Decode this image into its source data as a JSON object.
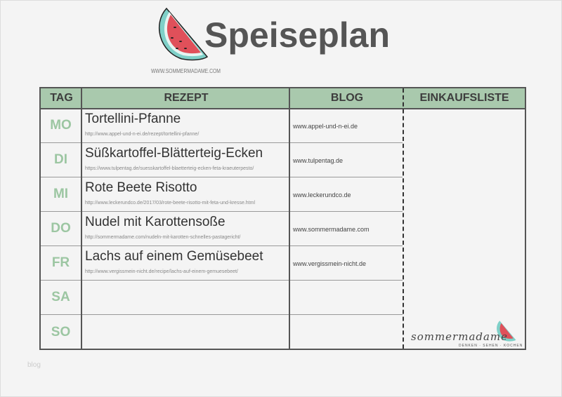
{
  "header": {
    "title": "Speiseplan",
    "website": "WWW.SOMMERMADAME.COM"
  },
  "table": {
    "columns": [
      "TAG",
      "REZEPT",
      "BLOG",
      "EINKAUFSLISTE"
    ],
    "rows": [
      {
        "day": "MO",
        "recipe": "Tortellini-Pfanne",
        "url": "http://www.appel-und-n-ei.de/rezept/tortellini-pfanne/",
        "blog": "www.appel-und-n-ei.de"
      },
      {
        "day": "DI",
        "recipe": "Süßkartoffel-Blätterteig-Ecken",
        "url": "https://www.tulpentag.de/suesskartoffel-blaetterteig-ecken-feta-kraeuterpesto/",
        "blog": "www.tulpentag.de"
      },
      {
        "day": "MI",
        "recipe": "Rote Beete Risotto",
        "url": "http://www.leckerundco.de/2017/03/rote-beete-risotto-mit-feta-und-kresse.html",
        "blog": "www.leckerundco.de"
      },
      {
        "day": "DO",
        "recipe": "Nudel mit Karottensoße",
        "url": "http://sommermadame.com/nudeln-mit-karotten-schnelles-pastagericht/",
        "blog": "www.sommermadame.com"
      },
      {
        "day": "FR",
        "recipe": "Lachs auf einem Gemüsebeet",
        "url": "http://www.vergissmein-nicht.de/recipe/lachs-auf-einem-gemuesebeet/",
        "blog": "www.vergissmein-nicht.de"
      },
      {
        "day": "SA",
        "recipe": "",
        "url": "",
        "blog": ""
      },
      {
        "day": "SO",
        "recipe": "",
        "url": "",
        "blog": ""
      }
    ]
  },
  "logo": {
    "text": "sommermadame",
    "sub": "DENKEN · SEHEN · KOCHEN"
  },
  "watermark": "blog",
  "colors": {
    "header_bg": "#a9c9ad",
    "day_text": "#9cc6a2",
    "title": "#555555",
    "melon": "#e0505a"
  }
}
